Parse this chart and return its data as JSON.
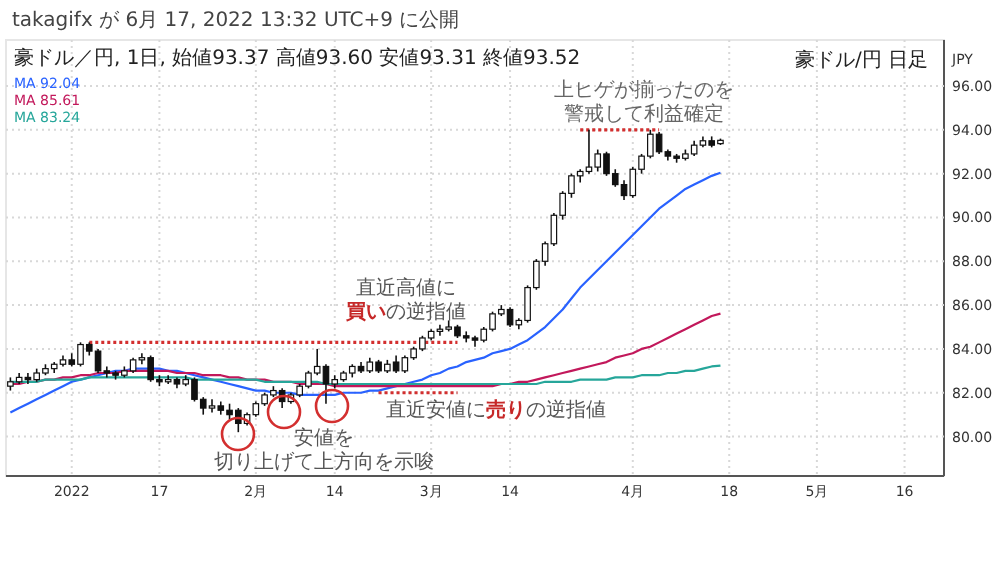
{
  "chart_data": {
    "type": "candlestick",
    "title": "豪ドル/円 日足",
    "subtitle": "豪ドル／円, 1日, 始値93.37 高値93.60 安値93.31 終値93.52",
    "ylabel": "JPY",
    "annotations": [
      "takagifx が 6月 17, 2022 13:32 UTC+9 に公開",
      "上ヒゲが揃ったのを警戒して利益確定",
      "直近高値に買いの逆指値",
      "直近安値に売りの逆指値",
      "安値を切り上げて上方向を示唆"
    ],
    "categories": [
      null,
      null,
      null,
      null,
      null,
      null,
      null,
      "2022",
      null,
      null,
      null,
      null,
      null,
      null,
      null,
      null,
      null,
      "17",
      null,
      null,
      null,
      null,
      null,
      null,
      null,
      null,
      null,
      null,
      "2月",
      null,
      null,
      null,
      null,
      null,
      null,
      null,
      null,
      "14",
      null,
      null,
      null,
      null,
      null,
      null,
      null,
      null,
      null,
      null,
      "3月",
      null,
      null,
      null,
      null,
      null,
      null,
      null,
      null,
      "14",
      null,
      null,
      null,
      null,
      null,
      null,
      null,
      null,
      null,
      null,
      null,
      null,
      null,
      "4月",
      null,
      null,
      null,
      null,
      null,
      null,
      null,
      null,
      null,
      null,
      "18",
      null,
      null,
      null,
      null,
      null,
      null,
      null,
      null,
      null,
      "5月",
      null,
      null,
      null,
      null,
      null,
      null,
      null,
      null,
      null,
      "16",
      null,
      null,
      null,
      null
    ],
    "ohlc": [
      [
        82.3,
        82.7,
        82.1,
        82.5
      ],
      [
        82.5,
        82.9,
        82.4,
        82.7
      ],
      [
        82.7,
        82.9,
        82.4,
        82.6
      ],
      [
        82.6,
        83.1,
        82.5,
        82.9
      ],
      [
        82.9,
        83.3,
        82.8,
        83.1
      ],
      [
        83.1,
        83.4,
        82.9,
        83.3
      ],
      [
        83.3,
        83.7,
        83.2,
        83.5
      ],
      [
        83.5,
        83.8,
        83.2,
        83.3
      ],
      [
        83.3,
        84.3,
        83.2,
        84.2
      ],
      [
        84.2,
        84.3,
        83.7,
        83.9
      ],
      [
        83.9,
        84.0,
        82.9,
        83.0
      ],
      [
        83.0,
        83.2,
        82.7,
        82.9
      ],
      [
        82.9,
        83.0,
        82.6,
        82.8
      ],
      [
        82.8,
        83.2,
        82.7,
        83.0
      ],
      [
        83.0,
        83.6,
        82.9,
        83.5
      ],
      [
        83.5,
        83.8,
        83.3,
        83.6
      ],
      [
        83.6,
        83.7,
        82.5,
        82.6
      ],
      [
        82.6,
        82.8,
        82.3,
        82.5
      ],
      [
        82.5,
        82.8,
        82.4,
        82.6
      ],
      [
        82.6,
        82.7,
        82.2,
        82.4
      ],
      [
        82.4,
        82.8,
        82.3,
        82.6
      ],
      [
        82.6,
        82.7,
        81.6,
        81.7
      ],
      [
        81.7,
        81.8,
        81.0,
        81.3
      ],
      [
        81.3,
        81.7,
        81.1,
        81.4
      ],
      [
        81.4,
        81.6,
        81.0,
        81.2
      ],
      [
        81.2,
        81.5,
        80.8,
        81.0
      ],
      [
        81.2,
        81.3,
        80.2,
        80.6
      ],
      [
        80.6,
        81.1,
        80.5,
        81.0
      ],
      [
        81.0,
        81.6,
        80.9,
        81.5
      ],
      [
        81.5,
        82.0,
        81.4,
        81.9
      ],
      [
        81.9,
        82.3,
        81.8,
        82.1
      ],
      [
        82.1,
        82.2,
        81.3,
        81.6
      ],
      [
        81.6,
        82.0,
        81.5,
        81.9
      ],
      [
        81.9,
        82.4,
        81.8,
        82.3
      ],
      [
        82.3,
        83.0,
        82.2,
        82.9
      ],
      [
        82.9,
        84.0,
        82.8,
        83.2
      ],
      [
        83.2,
        83.3,
        81.5,
        82.4
      ],
      [
        82.4,
        82.8,
        82.2,
        82.6
      ],
      [
        82.6,
        83.0,
        82.5,
        82.9
      ],
      [
        82.9,
        83.3,
        82.7,
        83.2
      ],
      [
        83.2,
        83.4,
        82.9,
        83.0
      ],
      [
        83.0,
        83.6,
        82.9,
        83.4
      ],
      [
        83.4,
        83.5,
        82.9,
        83.0
      ],
      [
        83.0,
        83.5,
        82.9,
        83.3
      ],
      [
        83.4,
        83.7,
        82.9,
        83.0
      ],
      [
        83.0,
        83.7,
        82.9,
        83.6
      ],
      [
        83.6,
        84.1,
        83.5,
        84.0
      ],
      [
        84.0,
        84.6,
        83.9,
        84.5
      ],
      [
        84.5,
        84.9,
        84.4,
        84.8
      ],
      [
        84.8,
        85.1,
        84.6,
        84.9
      ],
      [
        84.9,
        85.3,
        84.8,
        85.0
      ],
      [
        85.0,
        85.1,
        84.5,
        84.6
      ],
      [
        84.6,
        84.8,
        84.3,
        84.5
      ],
      [
        84.5,
        84.6,
        84.1,
        84.4
      ],
      [
        84.4,
        85.0,
        84.3,
        84.9
      ],
      [
        84.9,
        85.7,
        84.8,
        85.6
      ],
      [
        85.6,
        86.0,
        85.5,
        85.8
      ],
      [
        85.8,
        85.9,
        85.0,
        85.1
      ],
      [
        85.1,
        85.4,
        84.9,
        85.3
      ],
      [
        85.3,
        86.9,
        85.2,
        86.8
      ],
      [
        86.8,
        88.1,
        86.7,
        88.0
      ],
      [
        88.0,
        88.9,
        87.8,
        88.8
      ],
      [
        88.8,
        90.2,
        88.7,
        90.1
      ],
      [
        90.1,
        91.2,
        89.9,
        91.1
      ],
      [
        91.1,
        92.0,
        90.9,
        91.9
      ],
      [
        91.9,
        92.2,
        91.6,
        92.1
      ],
      [
        92.1,
        94.0,
        92.0,
        92.3
      ],
      [
        92.3,
        93.1,
        92.1,
        92.9
      ],
      [
        92.9,
        93.0,
        91.9,
        92.0
      ],
      [
        92.0,
        92.2,
        91.4,
        91.5
      ],
      [
        91.5,
        91.7,
        90.8,
        91.0
      ],
      [
        91.0,
        92.3,
        90.9,
        92.2
      ],
      [
        92.2,
        92.9,
        92.0,
        92.8
      ],
      [
        92.8,
        94.0,
        92.7,
        93.8
      ],
      [
        93.8,
        93.9,
        92.9,
        93.0
      ],
      [
        93.0,
        93.1,
        92.6,
        92.8
      ],
      [
        92.8,
        92.9,
        92.5,
        92.7
      ],
      [
        92.7,
        93.1,
        92.6,
        92.9
      ],
      [
        92.9,
        93.5,
        92.8,
        93.3
      ],
      [
        93.3,
        93.7,
        93.2,
        93.5
      ],
      [
        93.5,
        93.7,
        93.2,
        93.3
      ],
      [
        93.37,
        93.6,
        93.31,
        93.52
      ],
      null,
      null,
      null,
      null,
      null,
      null,
      null,
      null,
      null,
      null,
      null,
      null,
      null,
      null,
      null,
      null,
      null,
      null,
      null,
      null,
      null,
      null,
      null,
      null,
      null
    ],
    "series": [
      {
        "name": "MA 92.04",
        "type": "line",
        "color": "#2962ff",
        "values": [
          81.1,
          81.3,
          81.5,
          81.7,
          81.9,
          82.1,
          82.3,
          82.5,
          82.6,
          82.7,
          82.8,
          82.9,
          83.0,
          83.0,
          83.1,
          83.1,
          83.1,
          83.1,
          83.0,
          83.0,
          82.9,
          82.8,
          82.7,
          82.6,
          82.5,
          82.4,
          82.3,
          82.2,
          82.1,
          82.1,
          82.0,
          82.0,
          82.0,
          81.9,
          81.9,
          81.9,
          81.9,
          81.9,
          82.0,
          82.0,
          82.0,
          82.1,
          82.1,
          82.2,
          82.3,
          82.4,
          82.5,
          82.6,
          82.8,
          82.9,
          83.1,
          83.2,
          83.4,
          83.5,
          83.6,
          83.8,
          83.9,
          84.0,
          84.2,
          84.4,
          84.7,
          85.0,
          85.4,
          85.8,
          86.3,
          86.8,
          87.2,
          87.6,
          88.0,
          88.4,
          88.8,
          89.2,
          89.6,
          90.0,
          90.4,
          90.7,
          91.0,
          91.3,
          91.5,
          91.7,
          91.9,
          92.04,
          null,
          null,
          null,
          null,
          null,
          null,
          null,
          null,
          null,
          null,
          null,
          null,
          null,
          null,
          null,
          null,
          null,
          null,
          null,
          null,
          null,
          null,
          null,
          null,
          null
        ]
      },
      {
        "name": "MA 85.61",
        "type": "line",
        "color": "#c2185b",
        "values": [
          82.4,
          82.4,
          82.5,
          82.5,
          82.6,
          82.6,
          82.7,
          82.7,
          82.8,
          82.8,
          82.9,
          82.9,
          82.9,
          83.0,
          83.0,
          83.0,
          83.0,
          83.0,
          83.0,
          82.9,
          82.9,
          82.9,
          82.8,
          82.8,
          82.8,
          82.7,
          82.7,
          82.6,
          82.6,
          82.6,
          82.5,
          82.5,
          82.5,
          82.4,
          82.4,
          82.4,
          82.4,
          82.3,
          82.3,
          82.3,
          82.3,
          82.3,
          82.3,
          82.3,
          82.3,
          82.3,
          82.3,
          82.3,
          82.3,
          82.3,
          82.3,
          82.3,
          82.3,
          82.3,
          82.3,
          82.3,
          82.4,
          82.4,
          82.5,
          82.5,
          82.6,
          82.7,
          82.8,
          82.9,
          83.0,
          83.1,
          83.2,
          83.3,
          83.4,
          83.6,
          83.7,
          83.8,
          84.0,
          84.1,
          84.3,
          84.5,
          84.7,
          84.9,
          85.1,
          85.3,
          85.5,
          85.61,
          null,
          null,
          null,
          null,
          null,
          null,
          null,
          null,
          null,
          null,
          null,
          null,
          null,
          null,
          null,
          null,
          null,
          null,
          null,
          null,
          null,
          null,
          null,
          null,
          null
        ]
      },
      {
        "name": "MA 83.24",
        "type": "line",
        "color": "#26a69a",
        "values": [
          82.5,
          82.5,
          82.5,
          82.5,
          82.6,
          82.6,
          82.6,
          82.6,
          82.6,
          82.7,
          82.7,
          82.7,
          82.7,
          82.7,
          82.7,
          82.7,
          82.7,
          82.7,
          82.7,
          82.7,
          82.7,
          82.6,
          82.6,
          82.6,
          82.6,
          82.6,
          82.6,
          82.6,
          82.6,
          82.5,
          82.5,
          82.5,
          82.5,
          82.5,
          82.5,
          82.5,
          82.4,
          82.4,
          82.4,
          82.4,
          82.4,
          82.4,
          82.4,
          82.4,
          82.4,
          82.4,
          82.4,
          82.4,
          82.4,
          82.4,
          82.4,
          82.4,
          82.4,
          82.4,
          82.4,
          82.4,
          82.4,
          82.4,
          82.4,
          82.4,
          82.4,
          82.5,
          82.5,
          82.5,
          82.5,
          82.6,
          82.6,
          82.6,
          82.6,
          82.7,
          82.7,
          82.7,
          82.8,
          82.8,
          82.8,
          82.9,
          82.9,
          83.0,
          83.0,
          83.1,
          83.2,
          83.24,
          null,
          null,
          null,
          null,
          null,
          null,
          null,
          null,
          null,
          null,
          null,
          null,
          null,
          null,
          null,
          null,
          null,
          null,
          null,
          null,
          null,
          null,
          null,
          null,
          null
        ]
      },
      {
        "type": "line",
        "color": "#d32f2f",
        "line_style": "dotted",
        "values": [
          null,
          null,
          null,
          null,
          null,
          null,
          null,
          null,
          null,
          84.3,
          84.3,
          84.3,
          84.3,
          84.3,
          84.3,
          84.3,
          84.3,
          84.3,
          84.3,
          84.3,
          84.3,
          84.3,
          84.3,
          84.3,
          84.3,
          84.3,
          84.3,
          84.3,
          84.3,
          84.3,
          84.3,
          84.3,
          84.3,
          84.3,
          84.3,
          84.3,
          84.3,
          84.3,
          84.3,
          84.3,
          84.3,
          84.3,
          84.3,
          84.3,
          84.3,
          84.3,
          84.3,
          84.3,
          84.3,
          84.3,
          84.3,
          84.3,
          null,
          null,
          null,
          null,
          null,
          null,
          null,
          null,
          null,
          null,
          null,
          null,
          null,
          null,
          null,
          null,
          null,
          null,
          null,
          null,
          null,
          null,
          null,
          null,
          null,
          null,
          null,
          null,
          null,
          null,
          null,
          null,
          null,
          null,
          null,
          null,
          null,
          null,
          null,
          null,
          null,
          null,
          null,
          null,
          null,
          null,
          null,
          null,
          null,
          null,
          null,
          null,
          null,
          null,
          null
        ]
      },
      {
        "type": "line",
        "color": "#d32f2f",
        "line_style": "dotted",
        "values": [
          null,
          null,
          null,
          null,
          null,
          null,
          null,
          null,
          null,
          null,
          null,
          null,
          null,
          null,
          null,
          null,
          null,
          null,
          null,
          null,
          null,
          null,
          null,
          null,
          null,
          null,
          null,
          null,
          null,
          null,
          null,
          null,
          null,
          null,
          null,
          null,
          null,
          null,
          null,
          null,
          null,
          null,
          82.0,
          82.0,
          82.0,
          82.0,
          82.0,
          82.0,
          82.0,
          82.0,
          82.0,
          82.0,
          null,
          null,
          null,
          null,
          null,
          null,
          null,
          null,
          null,
          null,
          null,
          null,
          null,
          null,
          null,
          null,
          null,
          null,
          null,
          null,
          null,
          null,
          null,
          null,
          null,
          null,
          null,
          null,
          null,
          null,
          null,
          null,
          null,
          null,
          null,
          null,
          null,
          null,
          null,
          null,
          null,
          null,
          null,
          null,
          null,
          null,
          null,
          null,
          null,
          null,
          null,
          null,
          null,
          null,
          null
        ]
      },
      {
        "type": "line",
        "color": "#d32f2f",
        "line_style": "dotted",
        "values": [
          null,
          null,
          null,
          null,
          null,
          null,
          null,
          null,
          null,
          null,
          null,
          null,
          null,
          null,
          null,
          null,
          null,
          null,
          null,
          null,
          null,
          null,
          null,
          null,
          null,
          null,
          null,
          null,
          null,
          null,
          null,
          null,
          null,
          null,
          null,
          null,
          null,
          null,
          null,
          null,
          null,
          null,
          null,
          null,
          null,
          null,
          null,
          null,
          null,
          null,
          null,
          null,
          null,
          null,
          null,
          null,
          null,
          null,
          null,
          null,
          null,
          null,
          null,
          null,
          null,
          94.0,
          94.0,
          94.0,
          94.0,
          94.0,
          94.0,
          94.0,
          94.0,
          94.0,
          94.0,
          null,
          null,
          null,
          null,
          null,
          null,
          null,
          null,
          null,
          null,
          null,
          null,
          null,
          null,
          null,
          null,
          null,
          null,
          null,
          null,
          null,
          null,
          null,
          null,
          null,
          null,
          null,
          null,
          null,
          null,
          null,
          null
        ]
      }
    ],
    "ylim": [
      78.2,
      98.1
    ],
    "yticks": [
      {
        "value": 80,
        "label": "80.00"
      },
      {
        "value": 82,
        "label": "82.00"
      },
      {
        "value": 84,
        "label": "84.00"
      },
      {
        "value": 86,
        "label": "86.00"
      },
      {
        "value": 88,
        "label": "88.00"
      },
      {
        "value": 90,
        "label": "90.00"
      },
      {
        "value": 92,
        "label": "92.00"
      },
      {
        "value": 94,
        "label": "94.00"
      },
      {
        "value": 96,
        "label": "96.00"
      }
    ],
    "grid": true,
    "legend": "top left"
  }
}
